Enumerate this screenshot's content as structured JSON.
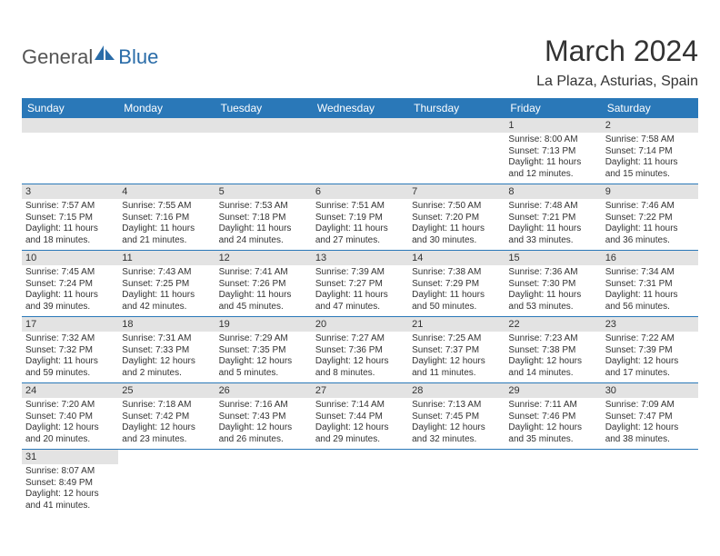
{
  "logo": {
    "part1": "General",
    "part2": "Blue"
  },
  "title": {
    "month": "March 2024",
    "location": "La Plaza, Asturias, Spain"
  },
  "colors": {
    "header_bg": "#2a78b8",
    "header_text": "#ffffff",
    "daynum_bg": "#e3e3e3",
    "rule": "#2a78b8",
    "text": "#333333",
    "logo_text": "#555555",
    "logo_blue": "#2a6ca8"
  },
  "day_headers": [
    "Sunday",
    "Monday",
    "Tuesday",
    "Wednesday",
    "Thursday",
    "Friday",
    "Saturday"
  ],
  "weeks": [
    [
      {
        "n": "",
        "sr": "",
        "ss": "",
        "dl": ""
      },
      {
        "n": "",
        "sr": "",
        "ss": "",
        "dl": ""
      },
      {
        "n": "",
        "sr": "",
        "ss": "",
        "dl": ""
      },
      {
        "n": "",
        "sr": "",
        "ss": "",
        "dl": ""
      },
      {
        "n": "",
        "sr": "",
        "ss": "",
        "dl": ""
      },
      {
        "n": "1",
        "sr": "Sunrise: 8:00 AM",
        "ss": "Sunset: 7:13 PM",
        "dl": "Daylight: 11 hours and 12 minutes."
      },
      {
        "n": "2",
        "sr": "Sunrise: 7:58 AM",
        "ss": "Sunset: 7:14 PM",
        "dl": "Daylight: 11 hours and 15 minutes."
      }
    ],
    [
      {
        "n": "3",
        "sr": "Sunrise: 7:57 AM",
        "ss": "Sunset: 7:15 PM",
        "dl": "Daylight: 11 hours and 18 minutes."
      },
      {
        "n": "4",
        "sr": "Sunrise: 7:55 AM",
        "ss": "Sunset: 7:16 PM",
        "dl": "Daylight: 11 hours and 21 minutes."
      },
      {
        "n": "5",
        "sr": "Sunrise: 7:53 AM",
        "ss": "Sunset: 7:18 PM",
        "dl": "Daylight: 11 hours and 24 minutes."
      },
      {
        "n": "6",
        "sr": "Sunrise: 7:51 AM",
        "ss": "Sunset: 7:19 PM",
        "dl": "Daylight: 11 hours and 27 minutes."
      },
      {
        "n": "7",
        "sr": "Sunrise: 7:50 AM",
        "ss": "Sunset: 7:20 PM",
        "dl": "Daylight: 11 hours and 30 minutes."
      },
      {
        "n": "8",
        "sr": "Sunrise: 7:48 AM",
        "ss": "Sunset: 7:21 PM",
        "dl": "Daylight: 11 hours and 33 minutes."
      },
      {
        "n": "9",
        "sr": "Sunrise: 7:46 AM",
        "ss": "Sunset: 7:22 PM",
        "dl": "Daylight: 11 hours and 36 minutes."
      }
    ],
    [
      {
        "n": "10",
        "sr": "Sunrise: 7:45 AM",
        "ss": "Sunset: 7:24 PM",
        "dl": "Daylight: 11 hours and 39 minutes."
      },
      {
        "n": "11",
        "sr": "Sunrise: 7:43 AM",
        "ss": "Sunset: 7:25 PM",
        "dl": "Daylight: 11 hours and 42 minutes."
      },
      {
        "n": "12",
        "sr": "Sunrise: 7:41 AM",
        "ss": "Sunset: 7:26 PM",
        "dl": "Daylight: 11 hours and 45 minutes."
      },
      {
        "n": "13",
        "sr": "Sunrise: 7:39 AM",
        "ss": "Sunset: 7:27 PM",
        "dl": "Daylight: 11 hours and 47 minutes."
      },
      {
        "n": "14",
        "sr": "Sunrise: 7:38 AM",
        "ss": "Sunset: 7:29 PM",
        "dl": "Daylight: 11 hours and 50 minutes."
      },
      {
        "n": "15",
        "sr": "Sunrise: 7:36 AM",
        "ss": "Sunset: 7:30 PM",
        "dl": "Daylight: 11 hours and 53 minutes."
      },
      {
        "n": "16",
        "sr": "Sunrise: 7:34 AM",
        "ss": "Sunset: 7:31 PM",
        "dl": "Daylight: 11 hours and 56 minutes."
      }
    ],
    [
      {
        "n": "17",
        "sr": "Sunrise: 7:32 AM",
        "ss": "Sunset: 7:32 PM",
        "dl": "Daylight: 11 hours and 59 minutes."
      },
      {
        "n": "18",
        "sr": "Sunrise: 7:31 AM",
        "ss": "Sunset: 7:33 PM",
        "dl": "Daylight: 12 hours and 2 minutes."
      },
      {
        "n": "19",
        "sr": "Sunrise: 7:29 AM",
        "ss": "Sunset: 7:35 PM",
        "dl": "Daylight: 12 hours and 5 minutes."
      },
      {
        "n": "20",
        "sr": "Sunrise: 7:27 AM",
        "ss": "Sunset: 7:36 PM",
        "dl": "Daylight: 12 hours and 8 minutes."
      },
      {
        "n": "21",
        "sr": "Sunrise: 7:25 AM",
        "ss": "Sunset: 7:37 PM",
        "dl": "Daylight: 12 hours and 11 minutes."
      },
      {
        "n": "22",
        "sr": "Sunrise: 7:23 AM",
        "ss": "Sunset: 7:38 PM",
        "dl": "Daylight: 12 hours and 14 minutes."
      },
      {
        "n": "23",
        "sr": "Sunrise: 7:22 AM",
        "ss": "Sunset: 7:39 PM",
        "dl": "Daylight: 12 hours and 17 minutes."
      }
    ],
    [
      {
        "n": "24",
        "sr": "Sunrise: 7:20 AM",
        "ss": "Sunset: 7:40 PM",
        "dl": "Daylight: 12 hours and 20 minutes."
      },
      {
        "n": "25",
        "sr": "Sunrise: 7:18 AM",
        "ss": "Sunset: 7:42 PM",
        "dl": "Daylight: 12 hours and 23 minutes."
      },
      {
        "n": "26",
        "sr": "Sunrise: 7:16 AM",
        "ss": "Sunset: 7:43 PM",
        "dl": "Daylight: 12 hours and 26 minutes."
      },
      {
        "n": "27",
        "sr": "Sunrise: 7:14 AM",
        "ss": "Sunset: 7:44 PM",
        "dl": "Daylight: 12 hours and 29 minutes."
      },
      {
        "n": "28",
        "sr": "Sunrise: 7:13 AM",
        "ss": "Sunset: 7:45 PM",
        "dl": "Daylight: 12 hours and 32 minutes."
      },
      {
        "n": "29",
        "sr": "Sunrise: 7:11 AM",
        "ss": "Sunset: 7:46 PM",
        "dl": "Daylight: 12 hours and 35 minutes."
      },
      {
        "n": "30",
        "sr": "Sunrise: 7:09 AM",
        "ss": "Sunset: 7:47 PM",
        "dl": "Daylight: 12 hours and 38 minutes."
      }
    ],
    [
      {
        "n": "31",
        "sr": "Sunrise: 8:07 AM",
        "ss": "Sunset: 8:49 PM",
        "dl": "Daylight: 12 hours and 41 minutes."
      },
      {
        "n": "",
        "sr": "",
        "ss": "",
        "dl": ""
      },
      {
        "n": "",
        "sr": "",
        "ss": "",
        "dl": ""
      },
      {
        "n": "",
        "sr": "",
        "ss": "",
        "dl": ""
      },
      {
        "n": "",
        "sr": "",
        "ss": "",
        "dl": ""
      },
      {
        "n": "",
        "sr": "",
        "ss": "",
        "dl": ""
      },
      {
        "n": "",
        "sr": "",
        "ss": "",
        "dl": ""
      }
    ]
  ]
}
